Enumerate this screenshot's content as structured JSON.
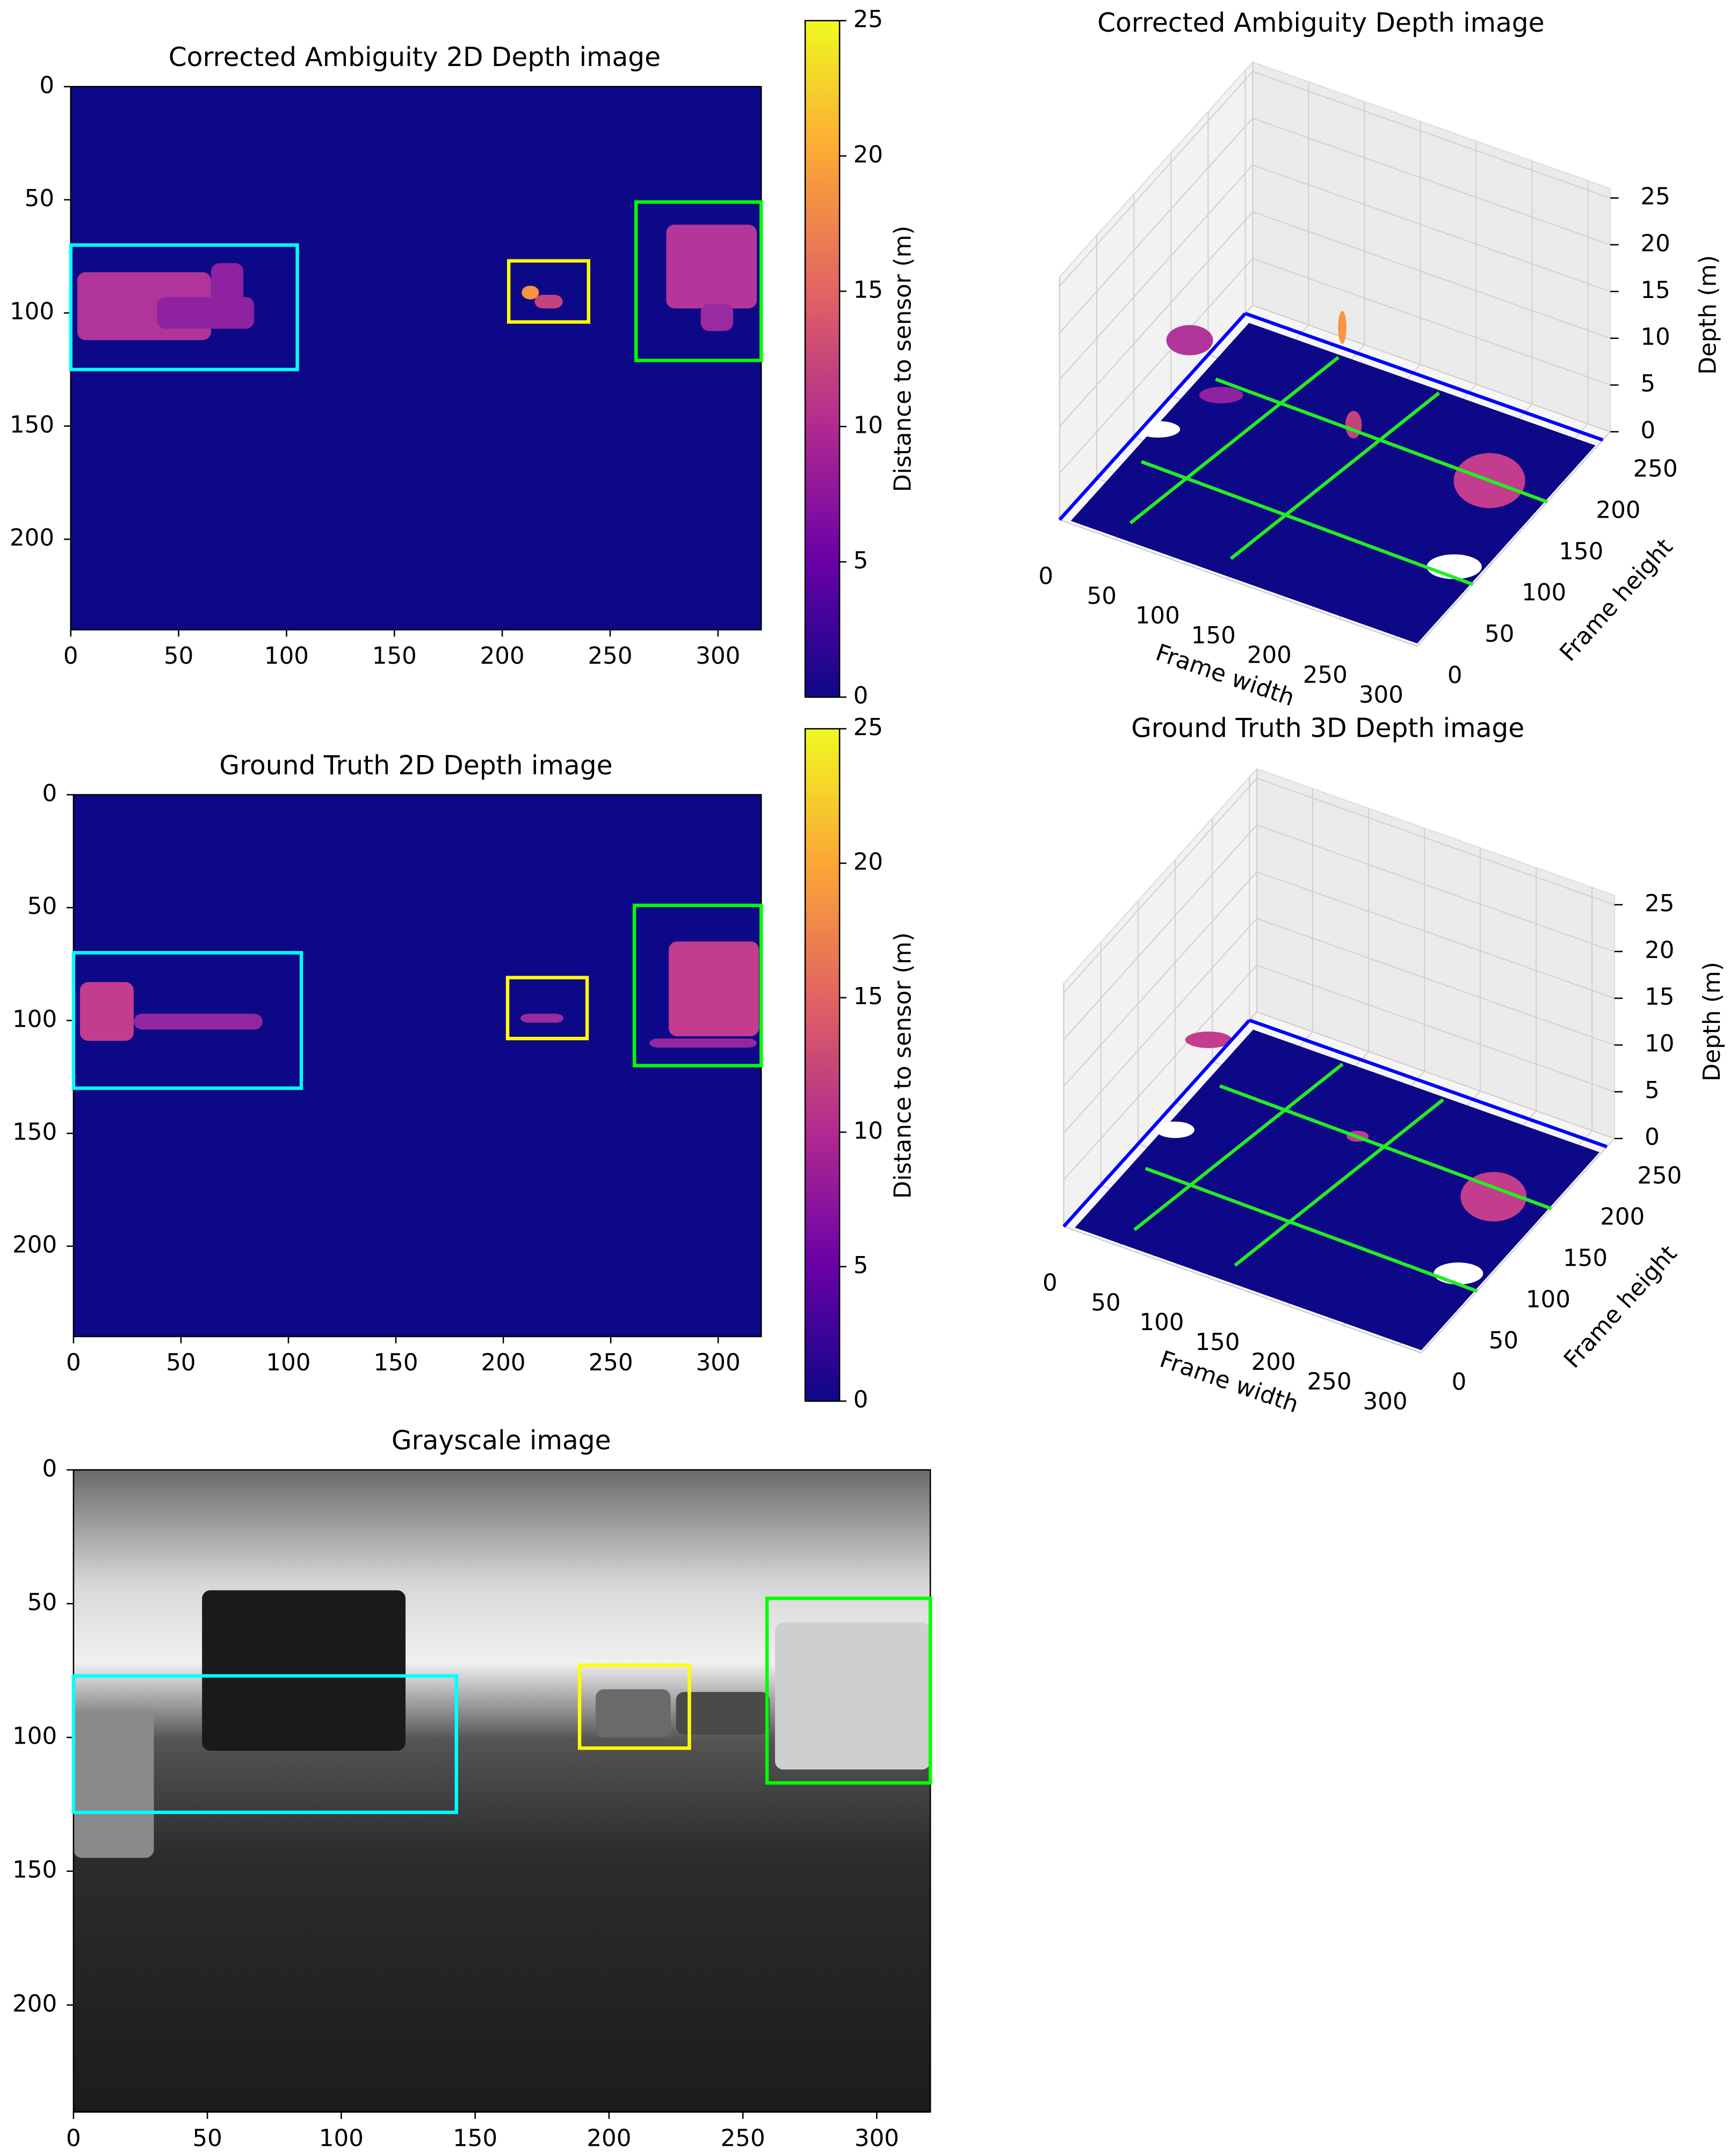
{
  "chart_data": [
    {
      "type": "heatmap",
      "title": "Corrected Ambiguity 2D Depth image",
      "xlim": [
        0,
        320
      ],
      "ylim": [
        240,
        0
      ],
      "xticks": [
        0,
        50,
        100,
        150,
        200,
        250,
        300
      ],
      "yticks": [
        0,
        50,
        100,
        150,
        200
      ],
      "colormap": "plasma",
      "colorbar": {
        "label": "Distance to sensor (m)",
        "lim": [
          0,
          25
        ],
        "ticks": [
          0,
          5,
          10,
          15,
          20,
          25
        ]
      },
      "boxes": [
        {
          "color": "#00ffff",
          "x": [
            0,
            105
          ],
          "y": [
            70,
            125
          ]
        },
        {
          "color": "#ffff00",
          "x": [
            203,
            240
          ],
          "y": [
            77,
            104
          ]
        },
        {
          "color": "#00ff00",
          "x": [
            262,
            320
          ],
          "y": [
            51,
            121
          ]
        }
      ]
    },
    {
      "type": "scatter3d",
      "title": "Corrected Ambiguity Depth image",
      "xlabel": "Frame width",
      "ylabel": "Frame height",
      "zlabel": "Depth (m)",
      "xlim": [
        0,
        320
      ],
      "ylim": [
        0,
        260
      ],
      "zlim": [
        0,
        26
      ],
      "xticks": [
        0,
        50,
        100,
        150,
        200,
        250,
        300
      ],
      "yticks": [
        0,
        50,
        100,
        150,
        200,
        250
      ],
      "zticks": [
        0,
        5,
        10,
        15,
        20,
        25
      ]
    },
    {
      "type": "heatmap",
      "title": "Ground Truth 2D Depth image",
      "xlim": [
        0,
        320
      ],
      "ylim": [
        240,
        0
      ],
      "xticks": [
        0,
        50,
        100,
        150,
        200,
        250,
        300
      ],
      "yticks": [
        0,
        50,
        100,
        150,
        200
      ],
      "colormap": "plasma",
      "colorbar": {
        "label": "Distance to sensor (m)",
        "lim": [
          0,
          25
        ],
        "ticks": [
          0,
          5,
          10,
          15,
          20,
          25
        ]
      },
      "boxes": [
        {
          "color": "#00ffff",
          "x": [
            0,
            106
          ],
          "y": [
            70,
            130
          ]
        },
        {
          "color": "#ffff00",
          "x": [
            202,
            239
          ],
          "y": [
            81,
            108
          ]
        },
        {
          "color": "#00ff00",
          "x": [
            261,
            320
          ],
          "y": [
            49,
            120
          ]
        }
      ]
    },
    {
      "type": "scatter3d",
      "title": "Ground Truth 3D Depth image",
      "xlabel": "Frame width",
      "ylabel": "Frame height",
      "zlabel": "Depth (m)",
      "xlim": [
        0,
        320
      ],
      "ylim": [
        0,
        260
      ],
      "zlim": [
        0,
        26
      ],
      "xticks": [
        0,
        50,
        100,
        150,
        200,
        250,
        300
      ],
      "yticks": [
        0,
        50,
        100,
        150,
        200,
        250
      ],
      "zticks": [
        0,
        5,
        10,
        15,
        20,
        25
      ]
    },
    {
      "type": "image",
      "title": "Grayscale image",
      "xlim": [
        0,
        320
      ],
      "ylim": [
        240,
        0
      ],
      "xticks": [
        0,
        50,
        100,
        150,
        200,
        250,
        300
      ],
      "yticks": [
        0,
        50,
        100,
        150,
        200
      ],
      "colormap": "gray",
      "boxes": [
        {
          "color": "#00ffff",
          "x": [
            0,
            143
          ],
          "y": [
            77,
            128
          ]
        },
        {
          "color": "#ffff00",
          "x": [
            189,
            230
          ],
          "y": [
            73,
            104
          ]
        },
        {
          "color": "#00ff00",
          "x": [
            259,
            320
          ],
          "y": [
            48,
            117
          ]
        }
      ]
    }
  ]
}
